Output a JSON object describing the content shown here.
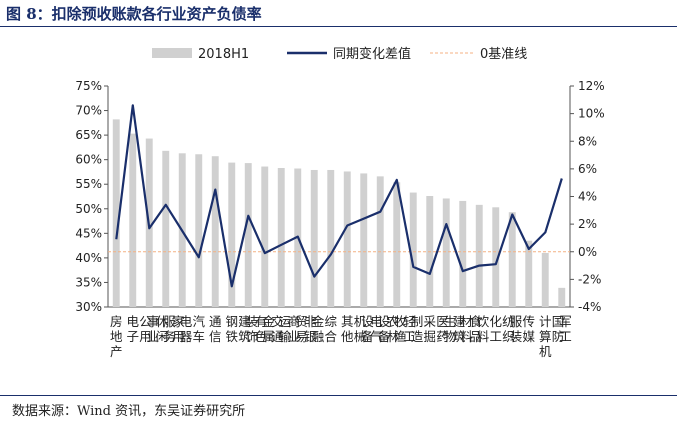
{
  "header": {
    "title": "图 8：扣除预收账款各行业资产负债率"
  },
  "footer": {
    "source": "数据来源：Wind 资讯，东吴证券研究所"
  },
  "chart_data": {
    "type": "bar+line",
    "categories": [
      "房地产",
      "电子",
      "公用事业",
      "休闲服务",
      "家用电器",
      "汽车",
      "通信",
      "钢铁",
      "建筑装饰",
      "有色金属",
      "交通运输",
      "商业贸易",
      "非银金融",
      "综合",
      "其他",
      "机械设备",
      "电气设备",
      "农林牧渔",
      "轻工制造",
      "采掘",
      "医药生物",
      "建筑材料",
      "食品饮料",
      "化工",
      "纺织服装",
      "传媒",
      "计算机",
      "国防军工"
    ],
    "series": [
      {
        "name": "2018H1",
        "type": "bar",
        "axis": "left",
        "unit": "%",
        "values": [
          68.2,
          65.3,
          64.3,
          61.8,
          61.3,
          61.1,
          60.7,
          59.4,
          59.3,
          58.6,
          58.3,
          58.2,
          57.9,
          57.9,
          57.6,
          57.2,
          56.6,
          55.4,
          53.3,
          52.6,
          52.1,
          51.6,
          50.8,
          50.3,
          49.3,
          43.5,
          41.0,
          33.9
        ]
      },
      {
        "name": "同期变化差值",
        "type": "line",
        "axis": "right",
        "unit": "%",
        "values": [
          0.9,
          10.6,
          1.7,
          3.4,
          1.5,
          -0.4,
          4.5,
          -2.5,
          2.6,
          -0.1,
          0.5,
          1.1,
          -1.8,
          -0.2,
          1.9,
          2.4,
          2.9,
          5.2,
          -1.1,
          -1.6,
          2.0,
          -1.4,
          -1.0,
          -0.9,
          2.7,
          0.2,
          1.4,
          5.3
        ]
      },
      {
        "name": "0基准线",
        "type": "reference",
        "axis": "right",
        "value": 0
      }
    ],
    "y_left": {
      "min": 30,
      "max": 75,
      "step": 5,
      "tick_labels": [
        "30%",
        "35%",
        "40%",
        "45%",
        "50%",
        "55%",
        "60%",
        "65%",
        "70%",
        "75%"
      ]
    },
    "y_right": {
      "min": -4,
      "max": 12,
      "step": 2,
      "tick_labels": [
        "-4%",
        "-2%",
        "0%",
        "2%",
        "4%",
        "6%",
        "8%",
        "10%",
        "12%"
      ]
    },
    "legend": {
      "position": "top"
    },
    "colors": {
      "bar": "#d0d0d0",
      "line": "#1a2f6b",
      "reference": "#f4b183"
    }
  }
}
